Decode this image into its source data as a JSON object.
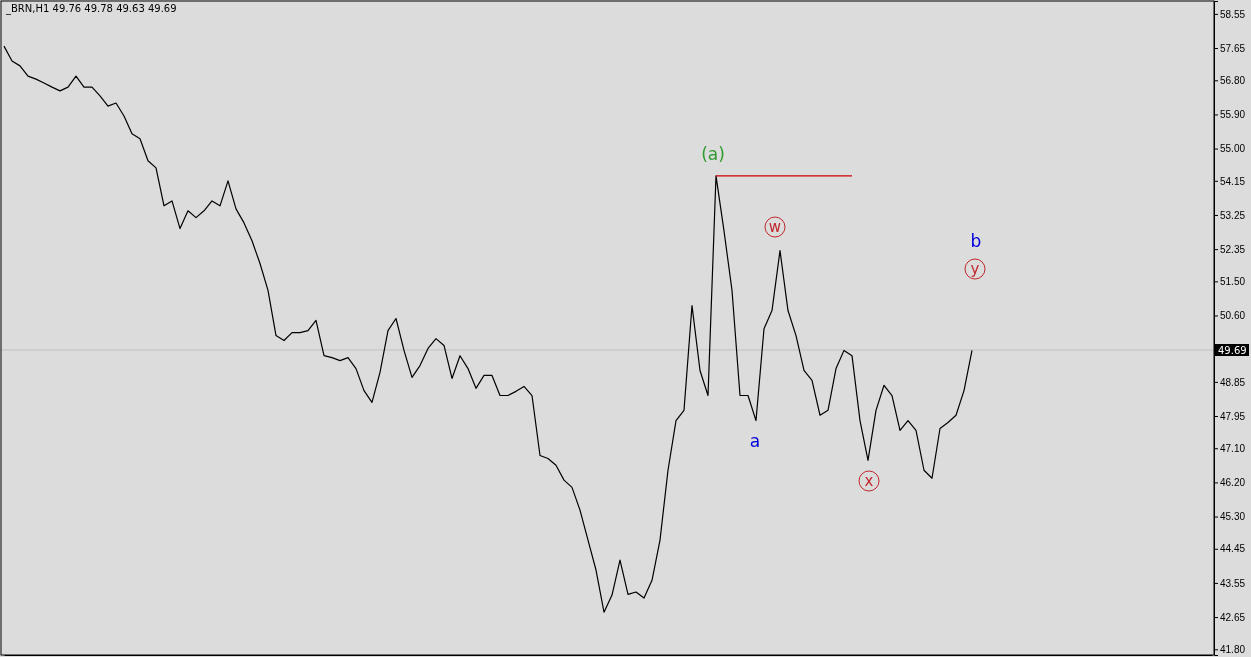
{
  "chart_data": {
    "type": "line",
    "title": "_BRN,H1  49.76 49.78 49.63 49.69",
    "categories": [
      null,
      null,
      null,
      null,
      null,
      null,
      null,
      null,
      null,
      null,
      null,
      null,
      null,
      null,
      null,
      null,
      null,
      null,
      null,
      null,
      null,
      null,
      null,
      null,
      null,
      null,
      null,
      null,
      null,
      null,
      null,
      null,
      null,
      null,
      null,
      null,
      null,
      null,
      null,
      null,
      null,
      null,
      null,
      null,
      null,
      null,
      null,
      null,
      null,
      null,
      null,
      null,
      null,
      null,
      null,
      null,
      null,
      null,
      null,
      null,
      null,
      null,
      null,
      null,
      null,
      null,
      null,
      null,
      null,
      null,
      null,
      null,
      null,
      null,
      null,
      null,
      null,
      null,
      null,
      null,
      null,
      null,
      null,
      null,
      null,
      null,
      null,
      null,
      null,
      null,
      null,
      null,
      null,
      null,
      null,
      null,
      null,
      null,
      null,
      null,
      null,
      null,
      null,
      null,
      null,
      null,
      null,
      null,
      null,
      null,
      null,
      null,
      null,
      null,
      null,
      null,
      null,
      null,
      null,
      null,
      null,
      null,
      null,
      null,
      null,
      null,
      null,
      null,
      null,
      null,
      null,
      null,
      null,
      null,
      null,
      null,
      null,
      null,
      null,
      null,
      null,
      null,
      null,
      null,
      null,
      null,
      null,
      null,
      null,
      null,
      null,
      null
    ],
    "ylim": [
      41.65,
      58.89
    ],
    "yticks": [
      {
        "value": 58.55,
        "label": "58.55"
      },
      {
        "value": 57.65,
        "label": "57.65"
      },
      {
        "value": 56.8,
        "label": "56.80"
      },
      {
        "value": 55.9,
        "label": "55.90"
      },
      {
        "value": 55,
        "label": "55.00"
      },
      {
        "value": 54.15,
        "label": "54.15"
      },
      {
        "value": 53.25,
        "label": "53.25"
      },
      {
        "value": 52.35,
        "label": "52.35"
      },
      {
        "value": 51.5,
        "label": "51.50"
      },
      {
        "value": 50.6,
        "label": "50.60"
      },
      {
        "value": 48.85,
        "label": "48.85"
      },
      {
        "value": 47.95,
        "label": "47.95"
      },
      {
        "value": 47.1,
        "label": "47.10"
      },
      {
        "value": 46.2,
        "label": "46.20"
      },
      {
        "value": 45.3,
        "label": "45.30"
      },
      {
        "value": 44.45,
        "label": "44.45"
      },
      {
        "value": 43.55,
        "label": "43.55"
      },
      {
        "value": 42.65,
        "label": "42.65"
      },
      {
        "value": 41.8,
        "label": "41.80"
      }
    ],
    "tick_labels": "y",
    "marker": "none",
    "line_style": "solid",
    "series": [
      {
        "color": "#000000",
        "values": [
          57.7,
          57.31,
          57.18,
          56.91,
          56.83,
          56.73,
          56.62,
          56.52,
          56.62,
          56.91,
          56.62,
          56.62,
          56.39,
          56.12,
          56.2,
          55.86,
          55.39,
          55.26,
          54.68,
          54.49,
          53.49,
          53.62,
          52.89,
          53.36,
          53.18,
          53.36,
          53.62,
          53.49,
          54.15,
          53.41,
          53.04,
          52.57,
          51.97,
          51.26,
          50.07,
          49.94,
          50.15,
          50.15,
          50.2,
          50.47,
          49.54,
          49.49,
          49.41,
          49.49,
          49.2,
          48.62,
          48.31,
          49.1,
          50.2,
          50.52,
          49.68,
          48.97,
          49.28,
          49.73,
          49.99,
          49.81,
          48.94,
          49.54,
          49.2,
          48.68,
          49.02,
          49.02,
          48.49,
          48.49,
          48.6,
          48.73,
          48.49,
          46.91,
          46.83,
          46.65,
          46.26,
          46.07,
          45.47,
          44.68,
          43.89,
          42.78,
          43.23,
          44.15,
          43.25,
          43.31,
          43.15,
          43.62,
          44.68,
          46.52,
          47.83,
          48.1,
          50.86,
          49.15,
          48.49,
          54.28,
          52.83,
          51.26,
          48.49,
          48.49,
          47.83,
          50.25,
          50.73,
          52.31,
          50.73,
          50.07,
          49.15,
          48.89,
          47.97,
          48.1,
          49.2,
          49.68,
          49.54,
          47.83,
          46.78,
          48.1,
          48.76,
          48.49,
          47.57,
          47.83,
          47.57,
          46.52,
          46.31,
          47.62,
          47.78,
          47.97,
          48.62,
          49.68,
          null,
          null,
          null,
          null,
          null,
          null,
          null,
          null,
          null,
          null,
          null,
          null,
          null,
          null,
          null,
          null,
          null,
          null,
          null,
          null,
          null,
          null,
          null,
          null,
          null,
          null,
          null,
          null,
          null,
          null
        ]
      },
      {
        "color": "#cc0000",
        "values": [
          null,
          null,
          null,
          null,
          null,
          null,
          null,
          null,
          null,
          null,
          null,
          null,
          null,
          null,
          null,
          null,
          null,
          null,
          null,
          null,
          null,
          null,
          null,
          null,
          null,
          null,
          null,
          null,
          null,
          null,
          null,
          null,
          null,
          null,
          null,
          null,
          null,
          null,
          null,
          null,
          null,
          null,
          null,
          null,
          null,
          null,
          null,
          null,
          null,
          null,
          null,
          null,
          null,
          null,
          null,
          null,
          null,
          null,
          null,
          null,
          null,
          null,
          null,
          null,
          null,
          null,
          null,
          null,
          null,
          null,
          null,
          null,
          null,
          null,
          null,
          null,
          null,
          null,
          null,
          null,
          null,
          null,
          null,
          null,
          null,
          null,
          null,
          null,
          null,
          54.28,
          54.28,
          54.28,
          54.28,
          54.28,
          54.28,
          54.28,
          54.28,
          54.28,
          54.28,
          54.28,
          54.28,
          54.28,
          54.28,
          54.28,
          54.28,
          54.28,
          54.28,
          null,
          null,
          null,
          null,
          null,
          null,
          null,
          null,
          null,
          null,
          null,
          null,
          null,
          null,
          null,
          null,
          null,
          null,
          null,
          null,
          null,
          null,
          null,
          null,
          null,
          null,
          null,
          null,
          null,
          null,
          null,
          null,
          null,
          null,
          null,
          null,
          null,
          null,
          null,
          null,
          null,
          null,
          null,
          null,
          null
        ]
      }
    ],
    "ref_lines": [
      {
        "axis": "y",
        "value": 49.69,
        "label": "49.69",
        "color": "#c0c0c0"
      }
    ],
    "annotations": [
      "(a)",
      "w",
      "a",
      "x",
      "b",
      "y"
    ]
  }
}
